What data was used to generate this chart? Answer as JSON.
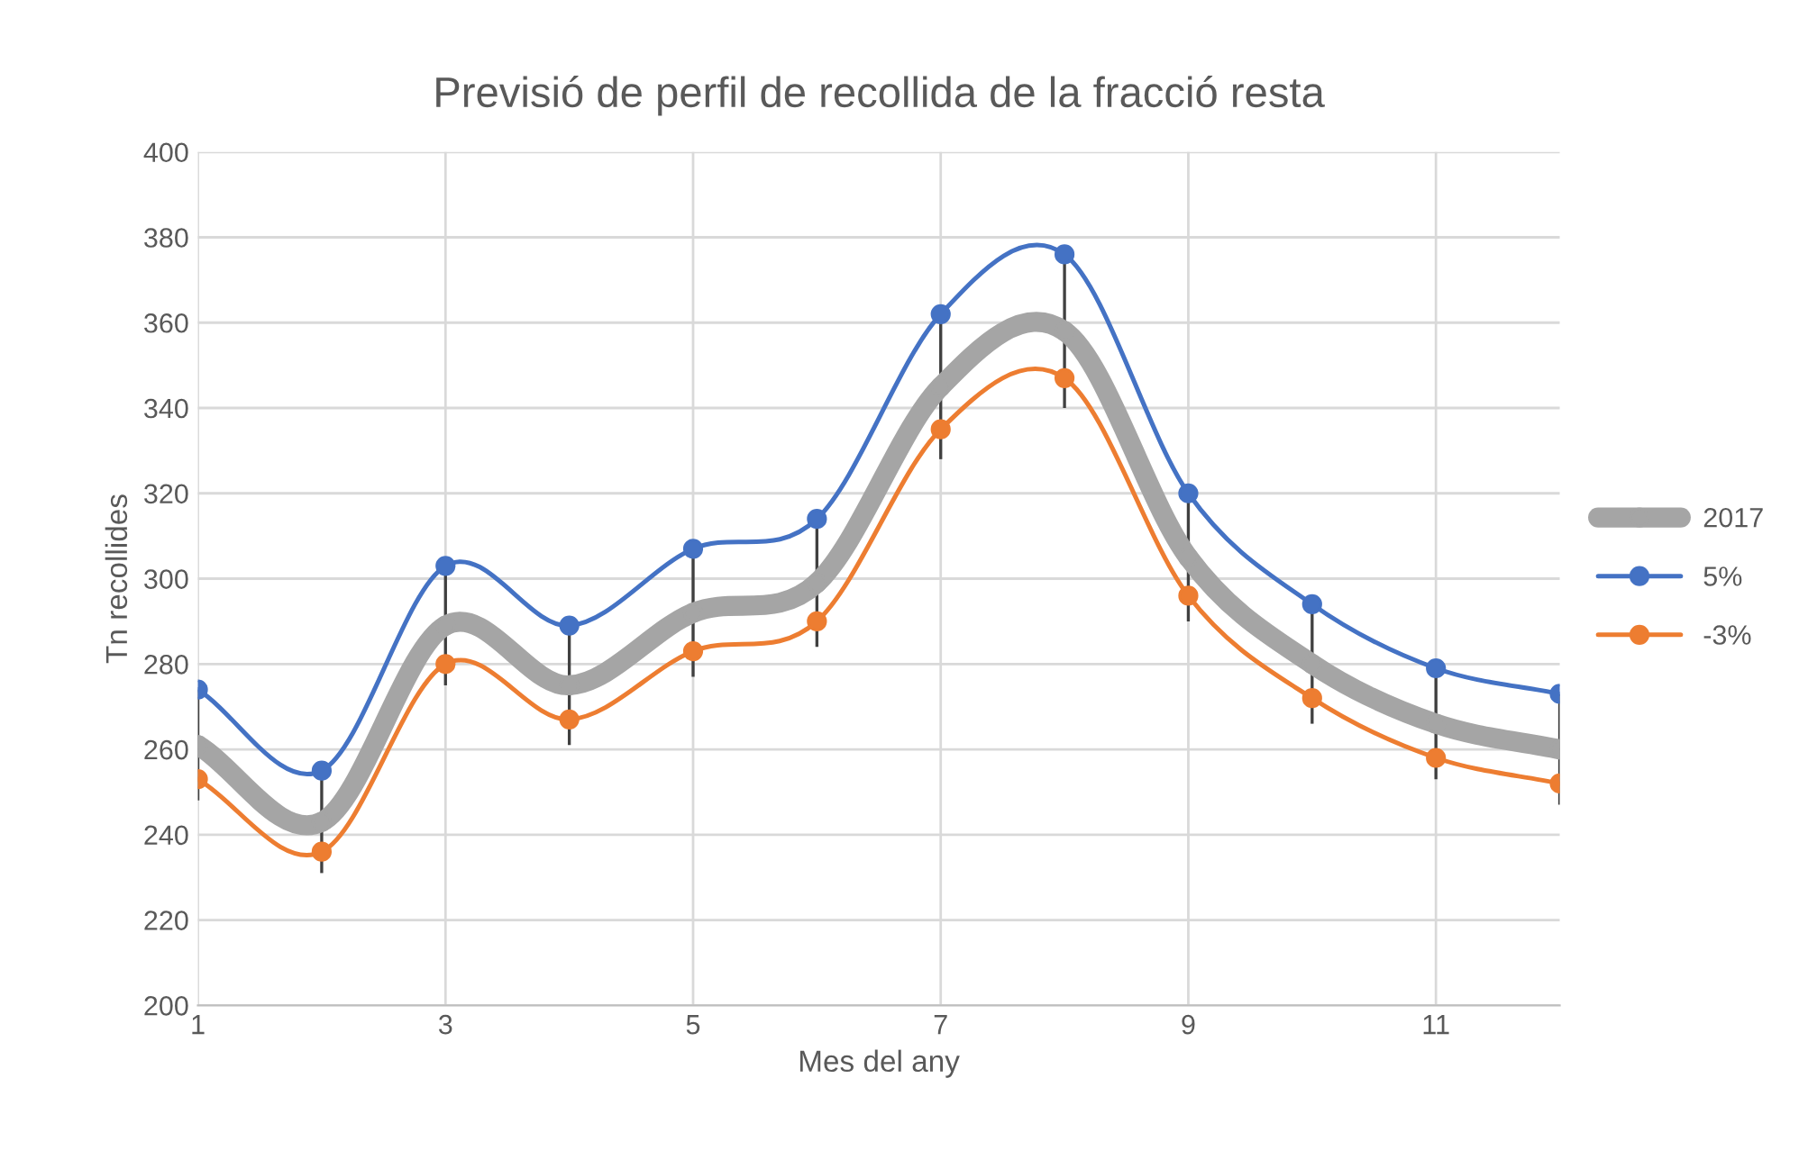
{
  "chart_data": {
    "type": "line",
    "title": "Previsió de perfil de recollida de la fracció resta",
    "xlabel": "Mes del any",
    "ylabel": "Tn recollides",
    "x": [
      1,
      2,
      3,
      4,
      5,
      6,
      7,
      8,
      9,
      10,
      11,
      12
    ],
    "series": [
      {
        "name": "2017",
        "color": "#a5a5a5",
        "values": [
          261,
          243,
          289,
          275,
          292,
          299,
          345,
          358,
          305,
          280,
          266,
          260
        ],
        "errors": [
          13,
          12,
          14,
          14,
          15,
          15,
          17,
          18,
          15,
          14,
          13,
          13
        ]
      },
      {
        "name": "5%",
        "color": "#4472c4",
        "values": [
          274,
          255,
          303,
          289,
          307,
          314,
          362,
          376,
          320,
          294,
          279,
          273
        ]
      },
      {
        "name": "-3%",
        "color": "#ed7d31",
        "values": [
          253,
          236,
          280,
          267,
          283,
          290,
          335,
          347,
          296,
          272,
          258,
          252
        ]
      }
    ],
    "xlim": [
      1,
      12
    ],
    "xticks": [
      1,
      3,
      5,
      7,
      9,
      11
    ],
    "ylim": [
      200,
      400
    ],
    "yticks": [
      200,
      220,
      240,
      260,
      280,
      300,
      320,
      340,
      360,
      380,
      400
    ],
    "grid": true,
    "legend": "right",
    "marker": "circle",
    "line_style": "solid"
  }
}
